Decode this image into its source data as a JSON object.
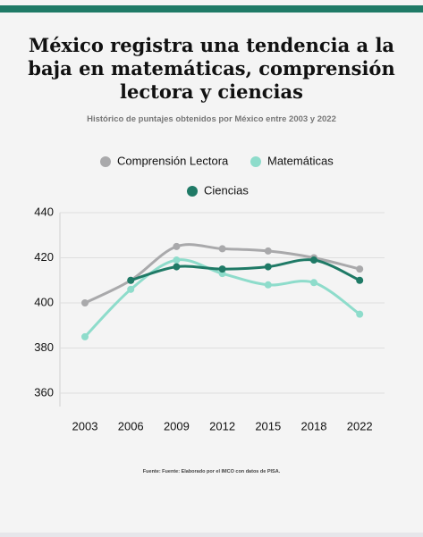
{
  "chart_data": {
    "type": "line",
    "title": "México registra una tendencia a la baja en matemáticas, comprensión lectora y ciencias",
    "subtitle": "Histórico de puntajes obtenidos por México entre 2003 y 2022",
    "source": "Fuente: Fuente: Elaborado por el IMCO con datos de PISA.",
    "categories": [
      "2003",
      "2006",
      "2009",
      "2012",
      "2015",
      "2018",
      "2022"
    ],
    "series": [
      {
        "name": "Comprensión Lectora",
        "color": "#a9a9ab",
        "values": [
          400,
          410,
          425,
          424,
          423,
          420,
          415
        ]
      },
      {
        "name": "Matemáticas",
        "color": "#8edccb",
        "values": [
          385,
          406,
          419,
          413,
          408,
          409,
          395
        ]
      },
      {
        "name": "Ciencias",
        "color": "#1f7a66",
        "values": [
          null,
          410,
          416,
          415,
          416,
          419,
          410
        ]
      }
    ],
    "ylim": [
      360,
      440
    ],
    "yticks": [
      360,
      380,
      400,
      420,
      440
    ],
    "grid": true
  }
}
